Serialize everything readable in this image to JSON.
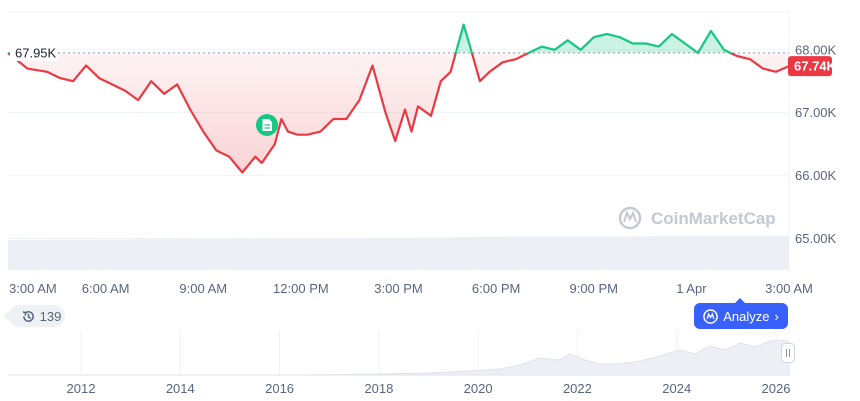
{
  "chart_data": {
    "type": "line",
    "reference_value": 67950,
    "reference_label": "67.95K",
    "current_value": 67740,
    "current_label": "67.74K",
    "ylim": [
      64500,
      68600
    ],
    "yticks": [
      {
        "value": 68000,
        "label": "68.00K"
      },
      {
        "value": 67000,
        "label": "67.00K"
      },
      {
        "value": 66000,
        "label": "66.00K"
      },
      {
        "value": 65000,
        "label": "65.00K"
      }
    ],
    "xlim": [
      0,
      24
    ],
    "xticks": [
      {
        "value": 0,
        "label": "3:00 AM"
      },
      {
        "value": 3,
        "label": "6:00 AM"
      },
      {
        "value": 6,
        "label": "9:00 AM"
      },
      {
        "value": 9,
        "label": "12:00 PM"
      },
      {
        "value": 12,
        "label": "3:00 PM"
      },
      {
        "value": 15,
        "label": "6:00 PM"
      },
      {
        "value": 18,
        "label": "9:00 PM"
      },
      {
        "value": 21,
        "label": "1 Apr"
      },
      {
        "value": 24,
        "label": "3:00 AM"
      }
    ],
    "series": [
      {
        "x": [
          0,
          0.6,
          1.2,
          1.6,
          2.0,
          2.4,
          2.8,
          3.2,
          3.6,
          4.0,
          4.4,
          4.8,
          5.2,
          5.6,
          6.0,
          6.4,
          6.8,
          7.2,
          7.6,
          7.8,
          8.0,
          8.2,
          8.4,
          8.6,
          8.9,
          9.2,
          9.6,
          10.0,
          10.4,
          10.8,
          11.2,
          11.6,
          11.9,
          12.2,
          12.4,
          12.6,
          13.0,
          13.3,
          13.6,
          14.0,
          14.2,
          14.5,
          14.8,
          15.2,
          15.6,
          16.0,
          16.4,
          16.8,
          17.2,
          17.6,
          18.0,
          18.4,
          18.8,
          19.2,
          19.6,
          20.0,
          20.4,
          20.8,
          21.2,
          21.6,
          22.0,
          22.4,
          22.8,
          23.2,
          23.6,
          24.0
        ],
        "y": [
          67950,
          67700,
          67650,
          67550,
          67500,
          67750,
          67550,
          67450,
          67350,
          67200,
          67500,
          67300,
          67450,
          67050,
          66700,
          66400,
          66300,
          66050,
          66300,
          66200,
          66350,
          66500,
          66900,
          66700,
          66650,
          66650,
          66700,
          66900,
          66900,
          67200,
          67750,
          67000,
          66550,
          67050,
          66700,
          67100,
          66950,
          67500,
          67650,
          68400,
          68050,
          67500,
          67650,
          67800,
          67850,
          67950,
          68050,
          68000,
          68150,
          68000,
          68200,
          68250,
          68200,
          68100,
          68100,
          68050,
          68250,
          68100,
          67950,
          68300,
          68000,
          67900,
          67850,
          67700,
          67650,
          67740
        ]
      }
    ]
  },
  "overview": {
    "ticks": [
      "2012",
      "2014",
      "2016",
      "2018",
      "2020",
      "2022",
      "2024",
      "2026"
    ]
  },
  "watermark": "CoinMarketCap",
  "badge": {
    "count": "139"
  },
  "analyze": {
    "label": "Analyze"
  }
}
